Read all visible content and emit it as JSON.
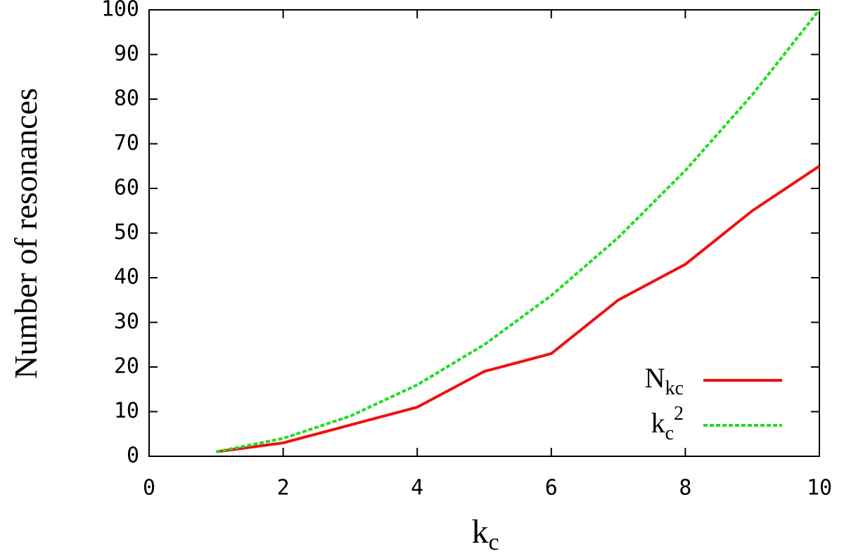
{
  "chart_data": {
    "type": "line",
    "ylabel": "Number of resonances",
    "xlabel": "k",
    "xlabel_sub": "c",
    "x": [
      1,
      2,
      3,
      4,
      5,
      6,
      7,
      8,
      9,
      10
    ],
    "series": [
      {
        "name": "N",
        "name_sub": "kc",
        "color": "#ee1111",
        "dash": false,
        "values": [
          1,
          3,
          7,
          11,
          19,
          23,
          35,
          43,
          55,
          65
        ]
      },
      {
        "name": "k",
        "name_sub": "c",
        "name_sup": "2",
        "color": "#22dd22",
        "dash": true,
        "values": [
          1,
          4,
          9,
          16,
          25,
          36,
          49,
          64,
          81,
          100
        ]
      }
    ],
    "xlim": [
      0,
      10
    ],
    "xticks": [
      0,
      2,
      4,
      6,
      8,
      10
    ],
    "ylim": [
      0,
      100
    ],
    "yticks": [
      0,
      10,
      20,
      30,
      40,
      50,
      60,
      70,
      80,
      90,
      100
    ],
    "grid": false,
    "legend": "lower right"
  }
}
